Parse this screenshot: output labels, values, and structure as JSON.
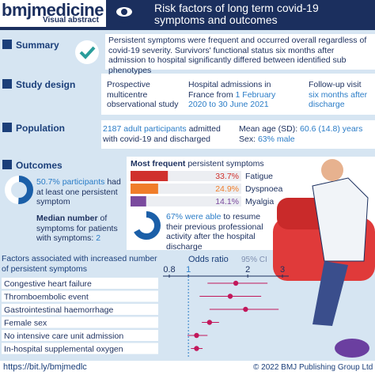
{
  "header": {
    "brand": "bmjmedicine",
    "subtitle": "Visual abstract",
    "title": "Risk factors of long term covid-19 symptoms and outcomes"
  },
  "summary": {
    "label": "Summary",
    "text": "Persistent symptoms were frequent and occurred overall regardless of covid-19 severity. Survivors' functional status six months after admission to hospital significantly differed between identified sub phenotypes"
  },
  "study_design": {
    "label": "Study design",
    "type": "Prospective multicentre observational study",
    "admissions": "Hospital admissions in France from",
    "admission_dates": "1 February 2020 to 30 June 2021",
    "followup": "Follow-up visit",
    "followup_time": "six months after discharge"
  },
  "population": {
    "label": "Population",
    "participants": "2187 adult participants",
    "participants_rest": "admitted with covid-19 and discharged",
    "age_label": "Mean age (SD):",
    "age": "60.6 (14.8) years",
    "sex_label": "Sex:",
    "sex": "63% male"
  },
  "outcomes": {
    "label": "Outcomes",
    "persistent": {
      "value": 50.7,
      "highlight": "50.7% participants",
      "text": "had at least one persistent symptom"
    },
    "median_title": "Median number",
    "median_text": "of symptoms for patients with symptoms:",
    "median": "2",
    "symptoms_title": "Most frequent",
    "symptoms_subtitle": "persistent symptoms",
    "symptoms": [
      {
        "label": "Fatigue",
        "value": 33.7,
        "value_label": "33.7%",
        "color": "#d0312d"
      },
      {
        "label": "Dyspnoea",
        "value": 24.9,
        "value_label": "24.9%",
        "color": "#f07d2a"
      },
      {
        "label": "Myalgia",
        "value": 14.1,
        "value_label": "14.1%",
        "color": "#7a4a9e"
      }
    ],
    "resume": {
      "value": 67,
      "highlight": "67% were able",
      "text": "to resume their previous professional activity after the hospital discharge"
    }
  },
  "forest": {
    "title": "Factors associated with increased number of persistent symptoms",
    "axis_label": "Odds ratio",
    "ci_label": "95% CI",
    "log_scale": true,
    "xlim": [
      0.8,
      3
    ],
    "xticks": [
      0.8,
      1,
      2,
      3
    ],
    "reference": 1,
    "color": "#c2185b",
    "rows": [
      {
        "label": "Congestive heart failure",
        "or": 1.74,
        "low": 1.25,
        "high": 2.52
      },
      {
        "label": "Thromboembolic event",
        "or": 1.63,
        "low": 1.14,
        "high": 2.34
      },
      {
        "label": "Gastrointestinal haemorrhage",
        "or": 1.95,
        "low": 1.28,
        "high": 2.87
      },
      {
        "label": "Female sex",
        "or": 1.28,
        "low": 1.17,
        "high": 1.43
      },
      {
        "label": "No intensive care unit admission",
        "or": 1.1,
        "low": 0.99,
        "high": 1.25
      },
      {
        "label": "In-hospital supplemental oxygen",
        "or": 1.1,
        "low": 1.03,
        "high": 1.18
      }
    ]
  },
  "footer": {
    "link": "https://bit.ly/bmjmedlc",
    "copyright": "© 2022 BMJ Publishing Group Ltd"
  }
}
